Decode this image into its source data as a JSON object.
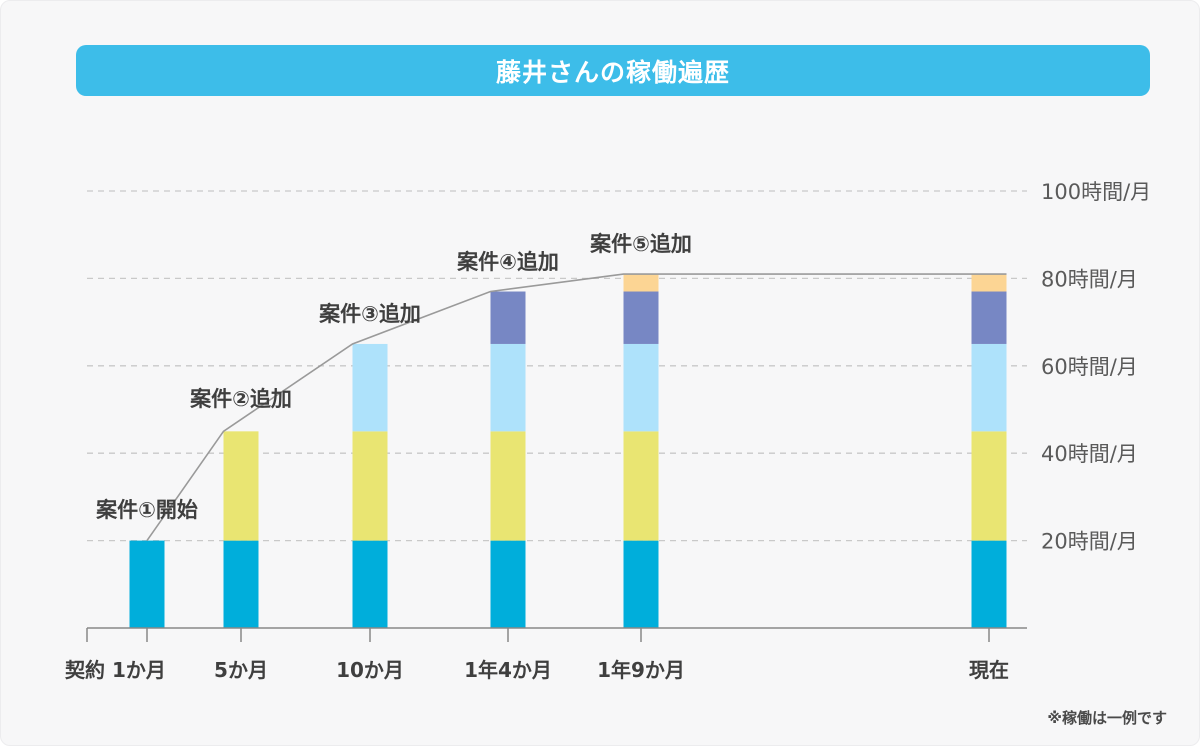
{
  "title": "藤井さんの稼働遍歴",
  "note": "※稼働は一例です",
  "chart_data": {
    "type": "bar",
    "stacked": true,
    "categories": [
      "契約 1か月",
      "5か月",
      "10か月",
      "1年4か月",
      "1年9か月",
      "現在"
    ],
    "y_ticks": [
      {
        "value": 20,
        "label": "20時間/月"
      },
      {
        "value": 40,
        "label": "40時間/月"
      },
      {
        "value": 60,
        "label": "60時間/月"
      },
      {
        "value": 80,
        "label": "80時間/月"
      },
      {
        "value": 100,
        "label": "100時間/月"
      }
    ],
    "ylim": [
      0,
      100
    ],
    "grid": true,
    "series": [
      {
        "color": "#00aedb",
        "values": [
          20,
          20,
          20,
          20,
          20,
          20
        ]
      },
      {
        "color": "#e9e572",
        "values": [
          0,
          25,
          25,
          25,
          25,
          25
        ]
      },
      {
        "color": "#aee2fb",
        "values": [
          0,
          0,
          20,
          20,
          20,
          20
        ]
      },
      {
        "color": "#7787c4",
        "values": [
          0,
          0,
          0,
          12,
          12,
          12
        ]
      },
      {
        "color": "#fcd594",
        "values": [
          0,
          0,
          0,
          0,
          4,
          4
        ]
      }
    ],
    "totals": [
      20,
      45,
      65,
      77,
      81,
      81
    ],
    "annotations": [
      {
        "index": 0,
        "text": "案件①開始"
      },
      {
        "index": 1,
        "text": "案件②追加"
      },
      {
        "index": 2,
        "text": "案件③追加"
      },
      {
        "index": 3,
        "text": "案件④追加"
      },
      {
        "index": 4,
        "text": "案件⑤追加"
      }
    ],
    "colors": {
      "grid": "#c9c9c9",
      "axis": "#888888",
      "trend": "#9a9a9a"
    }
  }
}
